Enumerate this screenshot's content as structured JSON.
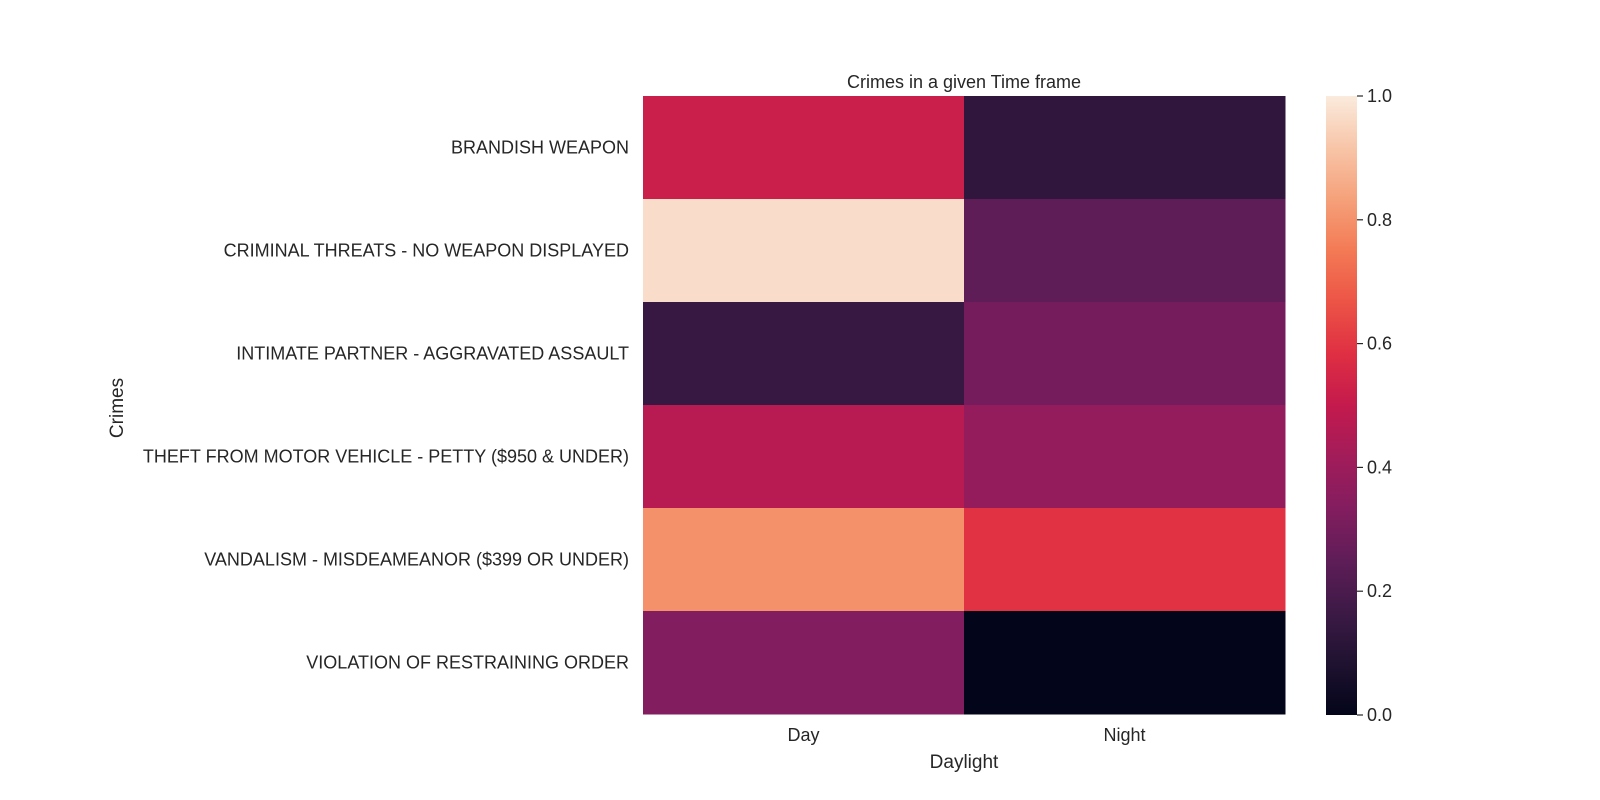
{
  "chart_data": {
    "type": "heatmap",
    "title": "Crimes in a given Time frame",
    "xlabel": "Daylight",
    "ylabel": "Crimes",
    "x_categories": [
      "Day",
      "Night"
    ],
    "y_categories": [
      "BRANDISH WEAPON",
      "CRIMINAL THREATS - NO WEAPON DISPLAYED",
      "INTIMATE PARTNER - AGGRAVATED ASSAULT",
      "THEFT FROM MOTOR VEHICLE - PETTY ($950 & UNDER)",
      "VANDALISM - MISDEAMEANOR ($399 OR UNDER)",
      "VIOLATION OF RESTRAINING ORDER"
    ],
    "values": [
      [
        0.52,
        0.13
      ],
      [
        0.97,
        0.25
      ],
      [
        0.15,
        0.3
      ],
      [
        0.47,
        0.38
      ],
      [
        0.8,
        0.59
      ],
      [
        0.33,
        0.0
      ]
    ],
    "colorbar": {
      "range": [
        0,
        1
      ],
      "ticks": [
        0.0,
        0.2,
        0.4,
        0.6,
        0.8,
        1.0
      ],
      "tick_labels": [
        "0.0",
        "0.2",
        "0.4",
        "0.6",
        "0.8",
        "1.0"
      ],
      "colormap": "rocket"
    },
    "colormap_stops": [
      "#03051a",
      "#1f1230",
      "#3d1a46",
      "#5f1d58",
      "#831d5f",
      "#a21c5a",
      "#c41a4d",
      "#df2f43",
      "#ec5446",
      "#f37a55",
      "#f5a17a",
      "#f8c5a8",
      "#faebdd"
    ]
  }
}
